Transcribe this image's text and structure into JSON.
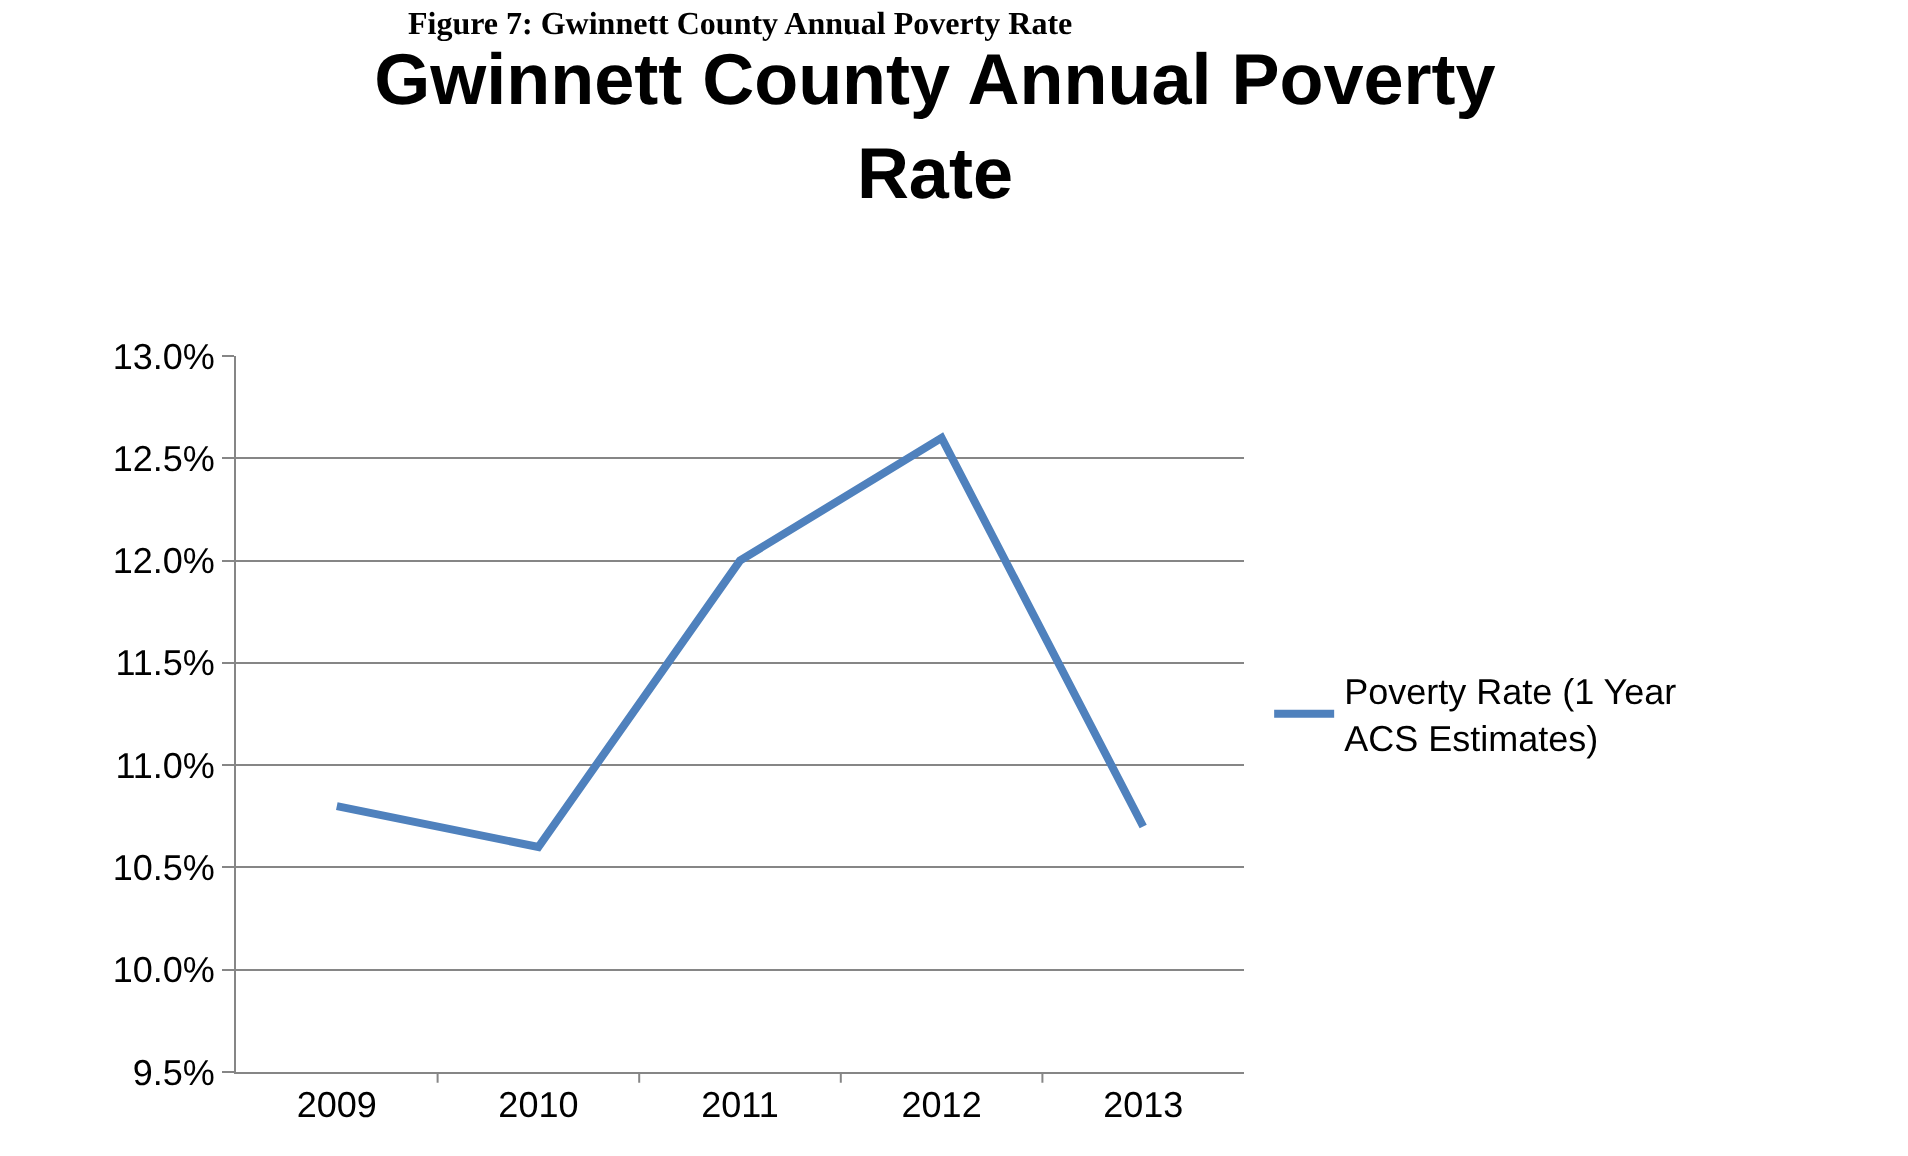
{
  "chart_data": {
    "type": "line",
    "title": "Gwinnett County Annual Poverty Rate",
    "annotations": [
      "Figure 7: Gwinnett County Annual Poverty Rate"
    ],
    "categories": [
      "2009",
      "2010",
      "2011",
      "2012",
      "2013"
    ],
    "series": [
      {
        "name": "Poverty Rate (1 Year ACS Estimates)",
        "color": "#4f81bd",
        "values": [
          10.8,
          10.6,
          12.0,
          12.6,
          10.7
        ]
      }
    ],
    "ylim": [
      9.5,
      13.0
    ],
    "yticks": [
      {
        "value": 9.5,
        "label": "9.5%"
      },
      {
        "value": 10.0,
        "label": "10.0%"
      },
      {
        "value": 10.5,
        "label": "10.5%"
      },
      {
        "value": 11.0,
        "label": "11.0%"
      },
      {
        "value": 11.5,
        "label": "11.5%"
      },
      {
        "value": 12.0,
        "label": "12.0%"
      },
      {
        "value": 12.5,
        "label": "12.5%"
      },
      {
        "value": 13.0,
        "label": "13.0%"
      }
    ],
    "grid": "y",
    "legend": "right",
    "marker": "none",
    "line_style": "solid"
  }
}
